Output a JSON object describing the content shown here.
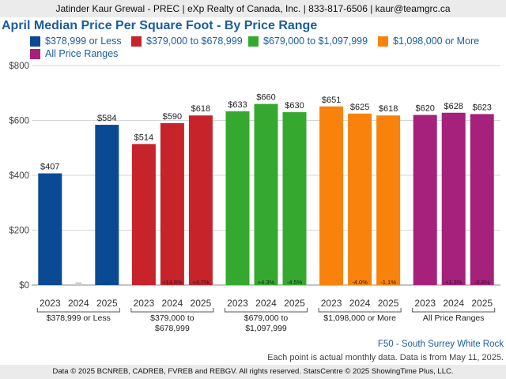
{
  "header": {
    "text": "Jatinder Kaur Grewal - PREC | eXp Realty of Canada, Inc. | 833-817-6506 | kaur@teamgrc.ca"
  },
  "colors": {
    "title": "#1b5c9e",
    "series": [
      "#0a4a94",
      "#c6232a",
      "#35a92f",
      "#f8820b",
      "#a6217b"
    ],
    "grid": "#d6d6d6",
    "header_bg": "#ebebeb"
  },
  "notes": {
    "region": "F50 - South Surrey White Rock",
    "data_note": "Each point is actual monthly data. Data is from May 11, 2025."
  },
  "footer": {
    "text": "Data © 2025 BCNREB, CADREB, FVREB and REBGV. All rights reserved. StatsCentre © 2025 ShowingTime Plus, LLC."
  },
  "chart_data": {
    "type": "bar",
    "title": "April Median Price Per Square Foot - By Price Range",
    "ylim": [
      0,
      800
    ],
    "yticks": [
      "$0",
      "$200",
      "$400",
      "$600",
      "$800"
    ],
    "grid": true,
    "legend_position": "top",
    "years": [
      "2023",
      "2024",
      "2025"
    ],
    "groups": [
      {
        "name": "$378,999 or Less",
        "label_lines": [
          "$378,999 or Less"
        ],
        "values": [
          407,
          null,
          584
        ],
        "value_labels": [
          "$407",
          "",
          "$584"
        ],
        "changes": [
          "",
          "—",
          "—"
        ]
      },
      {
        "name": "$379,000 to $678,999",
        "label_lines": [
          "$379,000 to",
          "$678,999"
        ],
        "values": [
          514,
          590,
          618
        ],
        "value_labels": [
          "$514",
          "$590",
          "$618"
        ],
        "changes": [
          "",
          "+14.8%",
          "+4.7%"
        ]
      },
      {
        "name": "$679,000 to $1,097,999",
        "label_lines": [
          "$679,000 to",
          "$1,097,999"
        ],
        "values": [
          633,
          660,
          630
        ],
        "value_labels": [
          "$633",
          "$660",
          "$630"
        ],
        "changes": [
          "",
          "+4.3%",
          "-4.5%"
        ]
      },
      {
        "name": "$1,098,000 or More",
        "label_lines": [
          "$1,098,000 or More"
        ],
        "values": [
          651,
          625,
          618
        ],
        "value_labels": [
          "$651",
          "$625",
          "$618"
        ],
        "changes": [
          "",
          "-4.0%",
          "-1.1%"
        ]
      },
      {
        "name": "All Price Ranges",
        "label_lines": [
          "All Price Ranges"
        ],
        "values": [
          620,
          628,
          623
        ],
        "value_labels": [
          "$620",
          "$628",
          "$623"
        ],
        "changes": [
          "",
          "+1.3%",
          "-0.8%"
        ]
      }
    ]
  }
}
